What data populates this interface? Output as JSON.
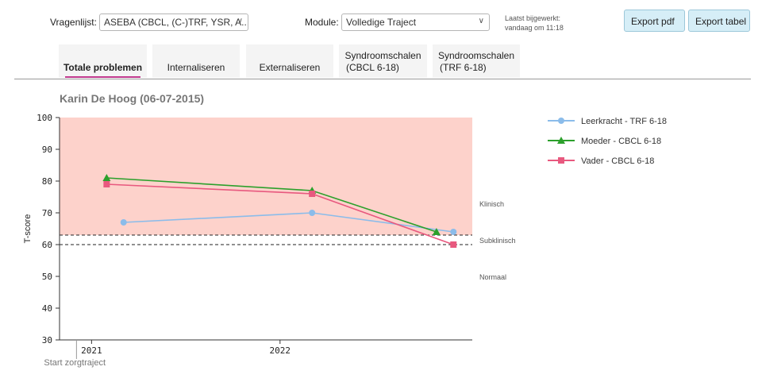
{
  "toolbar": {
    "questionnaire_label": "Vragenlijst:",
    "questionnaire_value": "ASEBA (CBCL, (C-)TRF, YSR, A...",
    "module_label": "Module:",
    "module_value": "Volledige Traject",
    "updated_line1": "Laatst bijgewerkt:",
    "updated_line2": "vandaag om 11:18",
    "export_pdf": "Export pdf",
    "export_table": "Export tabel",
    "chevron_icon": "chevron-down-icon"
  },
  "tabs": [
    {
      "label1": "Totale problemen",
      "label2": "",
      "active": true
    },
    {
      "label1": "Internaliseren",
      "label2": "",
      "active": false
    },
    {
      "label1": "Externaliseren",
      "label2": "",
      "active": false
    },
    {
      "label1": "Syndroomschalen",
      "label2": "(CBCL 6-18)",
      "active": false
    },
    {
      "label1": "Syndroomschalen",
      "label2": "(TRF 6-18)",
      "active": false
    }
  ],
  "patient_name": "Karin De Hoog (06-07-2015)",
  "chart_data": {
    "type": "line",
    "title": "",
    "xlabel": "",
    "ylabel": "T-score",
    "ylim": [
      30,
      100
    ],
    "yticks": [
      30,
      40,
      50,
      60,
      70,
      80,
      90,
      100
    ],
    "xtick_labels": [
      {
        "label": "2021",
        "year": 2021.0
      },
      {
        "label": "2022",
        "year": 2022.0
      }
    ],
    "xlim": [
      2020.83,
      2023.02
    ],
    "start_marker": {
      "label": "Start zorgtraject",
      "year": 2020.92
    },
    "zones": {
      "clinical_from": 63,
      "subclinical_from": 60,
      "clinical_color": "#fdd2cb",
      "labels": [
        {
          "text": "Klinisch",
          "y": 73
        },
        {
          "text": "Subklinisch",
          "y": 61.5
        },
        {
          "text": "Normaal",
          "y": 50
        }
      ]
    },
    "legend_position": "top-right",
    "series": [
      {
        "name": "Leerkracht - TRF 6-18",
        "color": "#8bbcea",
        "marker": "circle",
        "points": [
          [
            2021.17,
            67
          ],
          [
            2022.17,
            70
          ],
          [
            2022.92,
            64
          ]
        ]
      },
      {
        "name": "Moeder - CBCL 6-18",
        "color": "#2ca02c",
        "marker": "triangle",
        "points": [
          [
            2021.08,
            81
          ],
          [
            2022.17,
            77
          ],
          [
            2022.83,
            64
          ]
        ]
      },
      {
        "name": "Vader - CBCL 6-18",
        "color": "#e8597f",
        "marker": "square",
        "points": [
          [
            2021.08,
            79
          ],
          [
            2022.17,
            76
          ],
          [
            2022.92,
            60
          ]
        ]
      }
    ]
  }
}
